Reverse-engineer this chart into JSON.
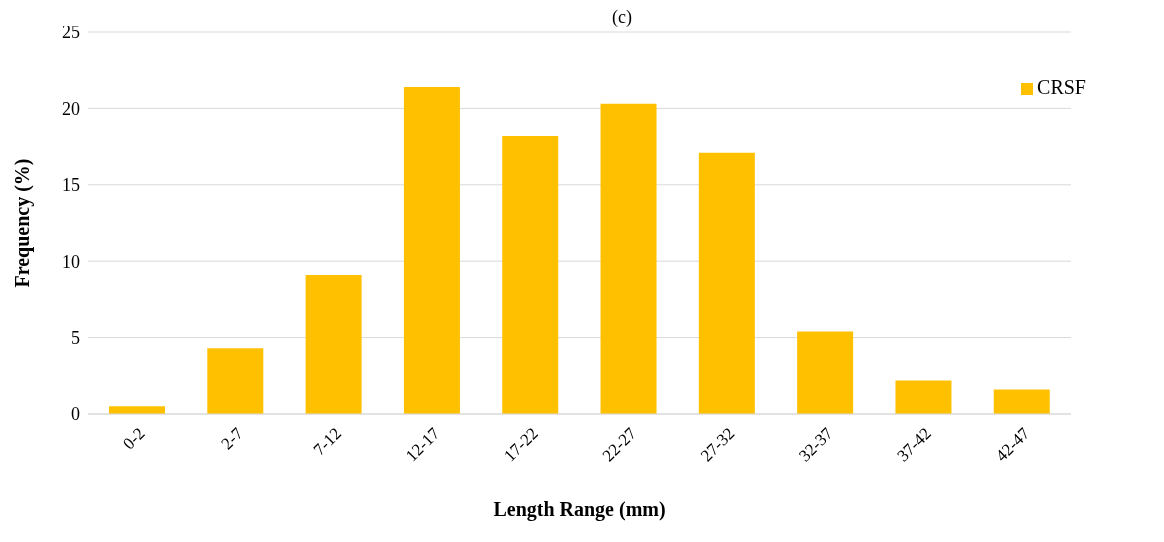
{
  "chart_data": {
    "type": "bar",
    "title": "(c)",
    "xlabel": "Length Range (mm)",
    "ylabel": "Frequency (%)",
    "categories": [
      "0-2",
      "2-7",
      "7-12",
      "12-17",
      "17-22",
      "22-27",
      "27-32",
      "32-37",
      "37-42",
      "42-47"
    ],
    "series": [
      {
        "name": "CRSF",
        "color": "#ffc000",
        "values": [
          0.5,
          4.3,
          9.1,
          21.4,
          18.2,
          20.3,
          17.1,
          5.4,
          2.2,
          1.6
        ]
      }
    ],
    "ylim": [
      0,
      25
    ],
    "yticks": [
      0,
      5,
      10,
      15,
      20,
      25
    ],
    "grid": "y",
    "legend": "top right"
  }
}
